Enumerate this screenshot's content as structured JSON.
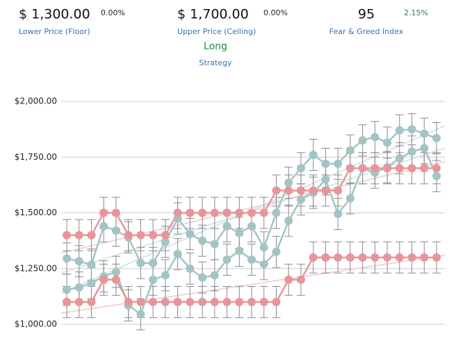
{
  "header": {
    "floor": {
      "value": "$ 1,300.00",
      "change": "0.00%",
      "label": "Lower Price (Floor)"
    },
    "ceiling": {
      "value": "$ 1,700.00",
      "change": "0.00%",
      "label": "Upper Price (Ceiling)"
    },
    "fear_greed": {
      "value": "95",
      "change": "2.15%",
      "label": "Fear & Greed Index"
    },
    "strategy": {
      "value": "Long",
      "label": "Strategy"
    }
  },
  "chart_data": {
    "type": "line",
    "ylim": [
      1000,
      2000
    ],
    "yticks": [
      {
        "value": 1000,
        "label": "$1,000.00"
      },
      {
        "value": 1250,
        "label": "$1,250.00"
      },
      {
        "value": 1500,
        "label": "$1,500.00"
      },
      {
        "value": 1750,
        "label": "$1,750.00"
      },
      {
        "value": 2000,
        "label": "$2,000.00"
      }
    ],
    "grid": true,
    "series": [
      {
        "color": "#a3c4c4",
        "error": 70,
        "values": [
          1295,
          1283,
          1268,
          1440,
          1420,
          1390,
          1275,
          1275,
          1370,
          1475,
          1405,
          1375,
          1360,
          1440,
          1410,
          1440,
          1345,
          1500,
          1635,
          1700,
          1760,
          1720,
          1720,
          1780,
          1825,
          1840,
          1815,
          1870,
          1875,
          1855,
          1835
        ]
      },
      {
        "color": "#a3c4c4",
        "error": 70,
        "values": [
          1155,
          1165,
          1185,
          1215,
          1235,
          1085,
          1045,
          1200,
          1220,
          1315,
          1250,
          1210,
          1220,
          1290,
          1330,
          1290,
          1270,
          1325,
          1465,
          1560,
          1590,
          1650,
          1495,
          1565,
          1700,
          1680,
          1705,
          1745,
          1775,
          1790,
          1665
        ]
      },
      {
        "color": "#e8959a",
        "error": 70,
        "values": [
          1400,
          1400,
          1400,
          1500,
          1500,
          1400,
          1400,
          1400,
          1400,
          1500,
          1500,
          1500,
          1500,
          1500,
          1500,
          1500,
          1500,
          1600,
          1600,
          1600,
          1600,
          1600,
          1600,
          1700,
          1700,
          1700,
          1700,
          1700,
          1700,
          1700,
          1700
        ]
      },
      {
        "color": "#e8959a",
        "error": 70,
        "values": [
          1100,
          1100,
          1100,
          1200,
          1200,
          1100,
          1100,
          1100,
          1100,
          1100,
          1100,
          1100,
          1100,
          1100,
          1100,
          1100,
          1100,
          1100,
          1200,
          1200,
          1300,
          1300,
          1300,
          1300,
          1300,
          1300,
          1300,
          1300,
          1300,
          1300,
          1300
        ]
      }
    ],
    "trendlines": [
      {
        "color": "#d6e6e6",
        "values": [
          1140,
          1890
        ]
      },
      {
        "color": "#d6e6e6",
        "values": [
          1230,
          1790
        ]
      },
      {
        "color": "#f3d3d5",
        "values": [
          1320,
          1730
        ]
      },
      {
        "color": "#f3d3d5",
        "values": [
          1050,
          1310
        ]
      }
    ]
  }
}
